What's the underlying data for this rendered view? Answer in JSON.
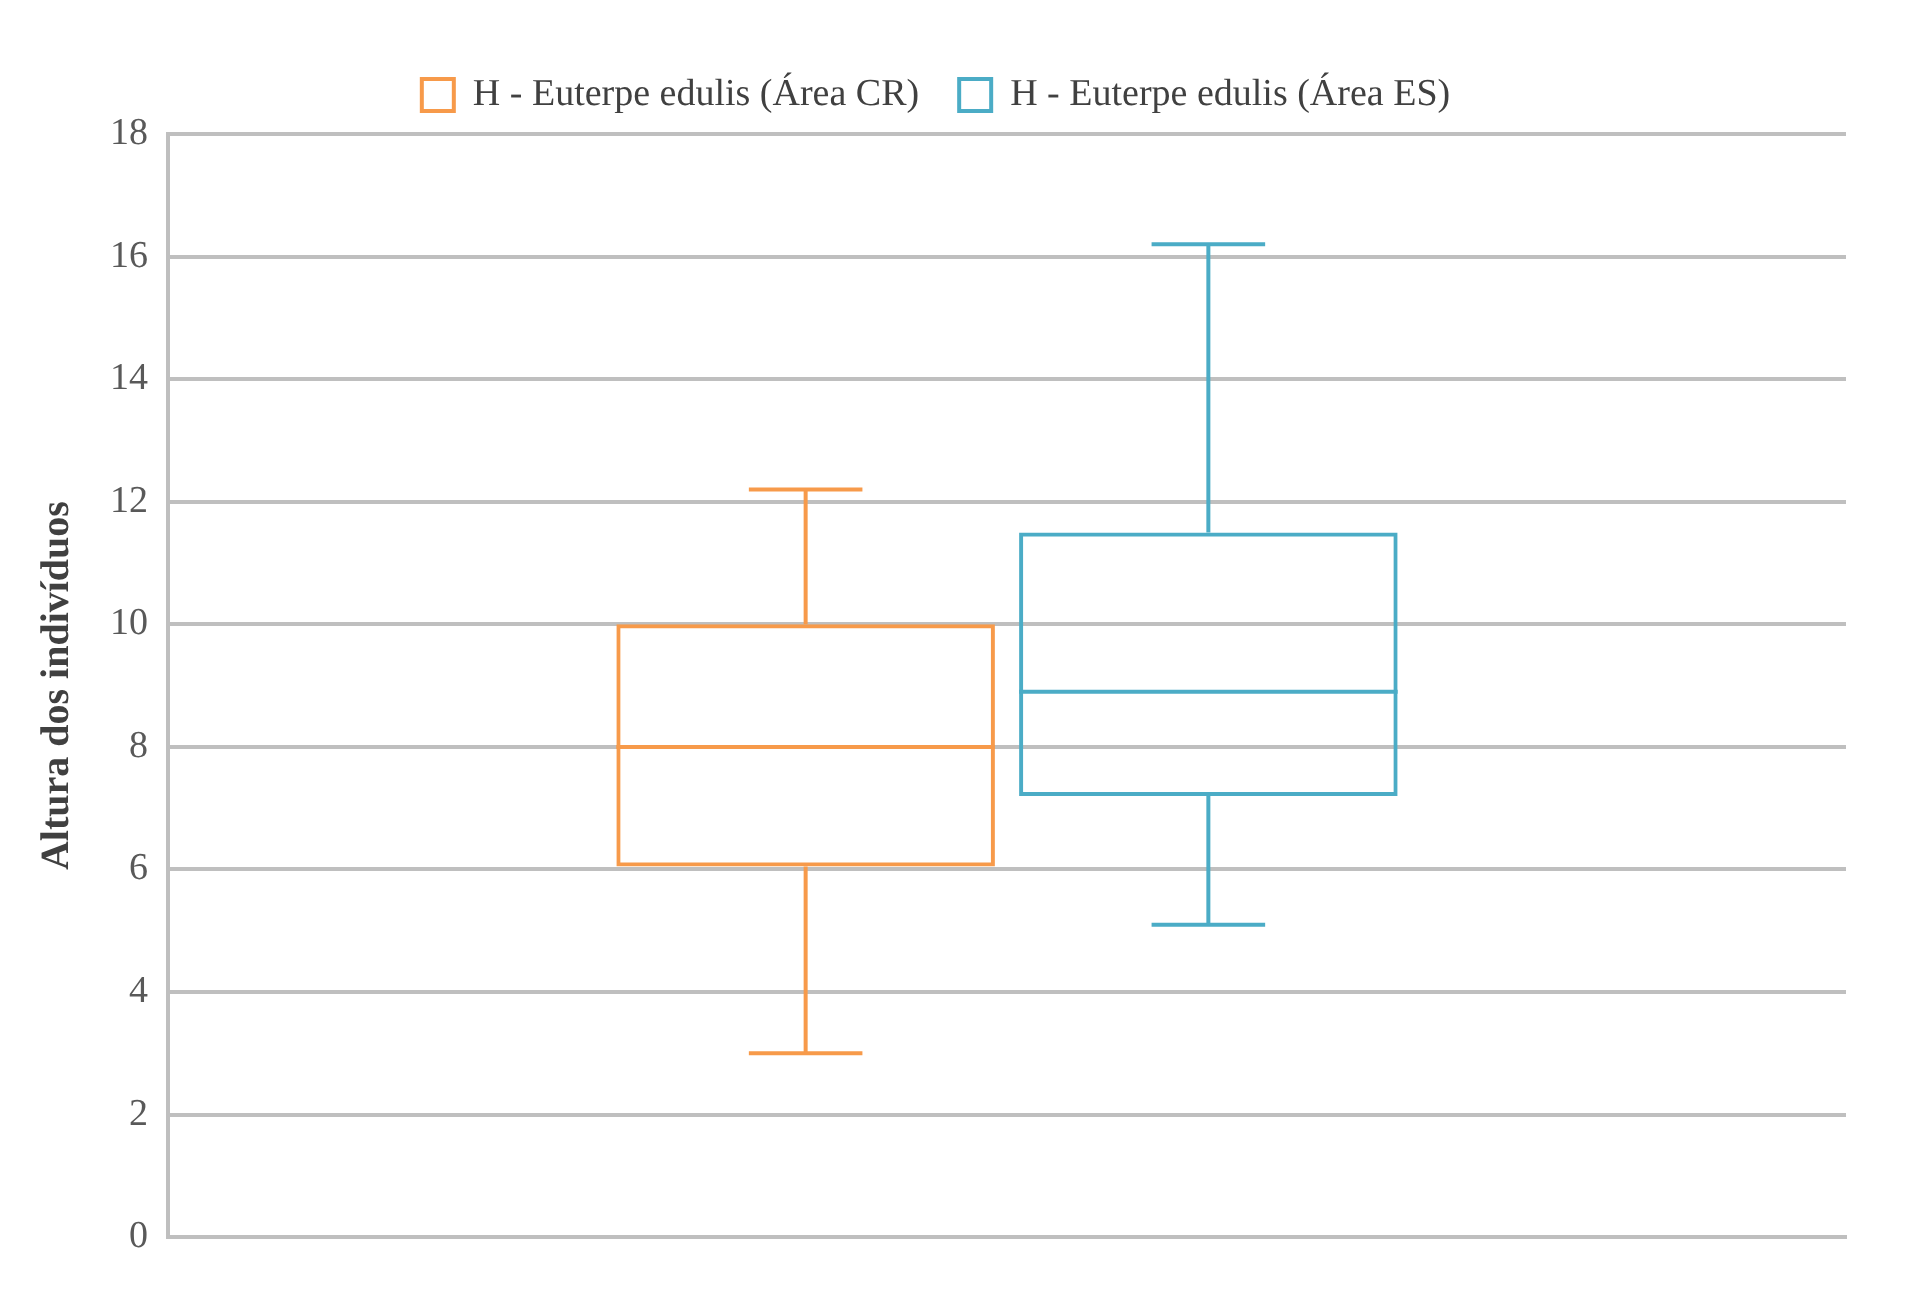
{
  "chart_data": {
    "type": "box",
    "ylabel": "Altura dos indivíduos",
    "categories": [
      null
    ],
    "ylim": [
      0,
      18
    ],
    "yticks": [
      0,
      2,
      4,
      6,
      8,
      10,
      12,
      14,
      16,
      18
    ],
    "grid": "y",
    "legend": "top",
    "series": [
      {
        "name": "H - Euterpe edulis (Área CR)",
        "color": "#f79a4a",
        "boxes": [
          {
            "low": 3.0,
            "q1": 6.05,
            "median": 8.0,
            "q3": 10.0,
            "high": 12.2
          }
        ]
      },
      {
        "name": "H - Euterpe edulis (Área ES)",
        "color": "#4bacc6",
        "boxes": [
          {
            "low": 5.1,
            "q1": 7.2,
            "median": 8.9,
            "q3": 11.5,
            "high": 16.2
          }
        ]
      }
    ]
  }
}
